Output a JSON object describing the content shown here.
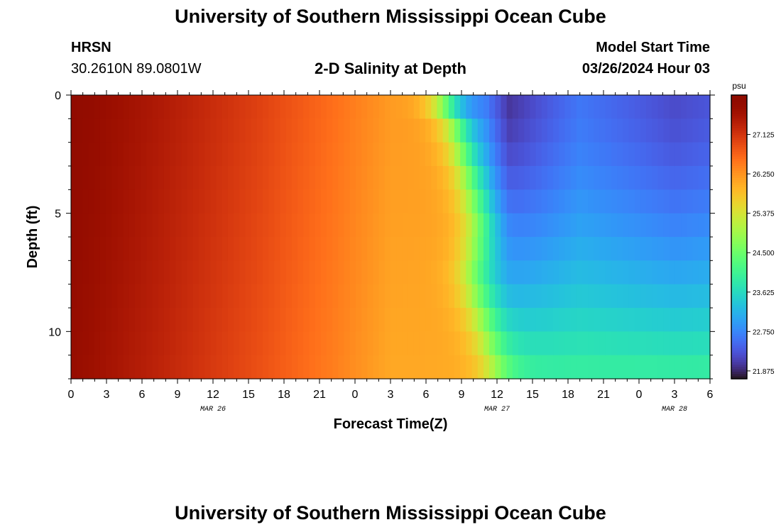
{
  "header": {
    "title": "University of Southern Mississippi Ocean Cube",
    "station_code": "HRSN",
    "station_coords": "30.2610N  89.0801W",
    "plot_title": "2-D Salinity at Depth",
    "model_start_label": "Model Start Time",
    "model_start_value": "03/26/2024 Hour 03"
  },
  "footer": {
    "title": "University of Southern Mississippi Ocean Cube"
  },
  "chart_data": {
    "type": "heatmap",
    "title": "2-D Salinity at Depth",
    "xlabel": "Forecast Time(Z)",
    "ylabel": "Depth (ft)",
    "x_units": "hours since 2024-03-26 00Z",
    "x_range": [
      0,
      54
    ],
    "x_tick_hours": [
      0,
      3,
      6,
      9,
      12,
      15,
      18,
      21,
      24,
      27,
      30,
      33,
      36,
      39,
      42,
      45,
      48,
      51,
      54
    ],
    "x_tick_labels": [
      "0",
      "3",
      "6",
      "9",
      "12",
      "15",
      "18",
      "21",
      "0",
      "3",
      "6",
      "9",
      "12",
      "15",
      "18",
      "21",
      "0",
      "3",
      "6"
    ],
    "date_labels": [
      {
        "hour": 12,
        "text": "MAR 26"
      },
      {
        "hour": 36,
        "text": "MAR 27"
      },
      {
        "hour": 51,
        "text": "MAR 28"
      }
    ],
    "y_range": [
      0,
      12
    ],
    "y_tick_values": [
      0,
      5,
      10
    ],
    "y_tick_labels": [
      "0",
      "5",
      "10"
    ],
    "colorbar": {
      "units": "psu",
      "range": [
        21.7,
        28.0
      ],
      "tick_values": [
        27.125,
        26.25,
        25.375,
        24.5,
        23.625,
        22.75,
        21.875
      ],
      "tick_labels": [
        "27.125",
        "26.250",
        "25.375",
        "24.500",
        "23.625",
        "22.750",
        "21.875"
      ],
      "colormap": "turbo"
    },
    "salinity_model": {
      "depth_levels_ft": [
        0,
        1,
        2,
        3,
        4,
        5,
        6,
        7,
        8,
        9,
        10,
        11,
        12
      ],
      "front_hour_by_depth": [
        31.0,
        32.5,
        33.0,
        33.5,
        34.0,
        34.3,
        34.6,
        34.0,
        34.0,
        34.5,
        35.0,
        35.5,
        36.0
      ],
      "high_side_profile": [
        {
          "hour": 0,
          "psu": 27.9
        },
        {
          "hour": 5,
          "psu": 27.6
        },
        {
          "hour": 16,
          "psu": 27.0
        },
        {
          "hour": 22,
          "psu": 26.6
        },
        {
          "hour": 27,
          "psu": 26.2
        }
      ],
      "low_side_surface_profile": [
        {
          "hour": 35,
          "psu": 22.6
        },
        {
          "hour": 37,
          "psu": 22.0
        },
        {
          "hour": 43,
          "psu": 22.6
        },
        {
          "hour": 51,
          "psu": 22.2
        },
        {
          "hour": 54,
          "psu": 22.3
        }
      ],
      "bottom_low_side_psu": 24.0
    }
  }
}
